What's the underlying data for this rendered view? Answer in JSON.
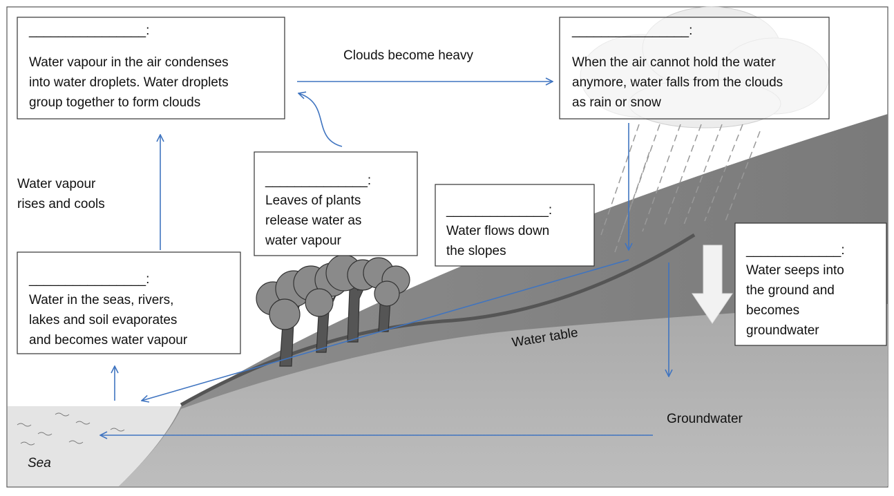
{
  "boxes": [
    {
      "blank": "________________:",
      "lines": [
        "Water vapour in the air condenses",
        "into water droplets. Water droplets",
        "group together to form clouds"
      ]
    },
    {
      "blank": "________________:",
      "lines": [
        "When the air cannot hold the water",
        "anymore, water falls from the clouds",
        "as rain or snow"
      ]
    },
    {
      "blank": "______________:",
      "lines": [
        "Leaves of plants",
        "release water as",
        "water vapour"
      ]
    },
    {
      "blank": "______________:",
      "lines": [
        "Water flows down",
        "the slopes"
      ]
    },
    {
      "blank": "________________:",
      "lines": [
        "Water in the seas, rivers,",
        "lakes and soil evaporates",
        "and becomes water vapour"
      ]
    },
    {
      "blank": "_____________:",
      "lines": [
        "Water seeps into",
        "the ground and",
        "becomes",
        "groundwater"
      ]
    }
  ],
  "labels": {
    "clouds_heavy": "Clouds become heavy",
    "vapour_rises": [
      "Water vapour",
      "rises and cools"
    ],
    "water_table": "Water table",
    "groundwater": "Groundwater",
    "sea": "Sea"
  }
}
